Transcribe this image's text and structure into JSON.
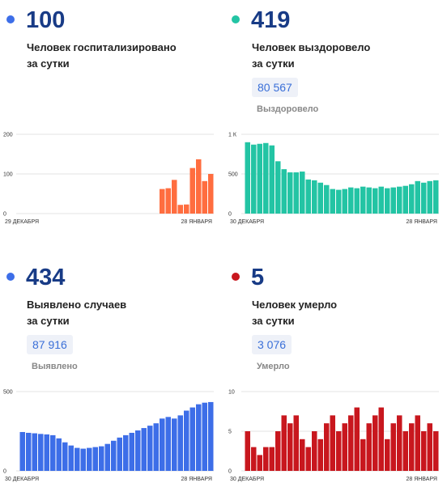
{
  "panels": {
    "hosp": {
      "value": "100",
      "line1": "Человек госпитализировано",
      "line2": "за сутки",
      "dot_color": "#3d6ee8"
    },
    "rec": {
      "value": "419",
      "line1": "Человек выздоровело",
      "line2": "за сутки",
      "total": "80 567",
      "total_label": "Выздоровело",
      "dot_color": "#23c4a4"
    },
    "case": {
      "value": "434",
      "line1": "Выявлено случаев",
      "line2": "за сутки",
      "total": "87 916",
      "total_label": "Выявлено",
      "dot_color": "#3d6ee8"
    },
    "dead": {
      "value": "5",
      "line1": "Человек умерло",
      "line2": "за сутки",
      "total": "3 076",
      "total_label": "Умерло",
      "dot_color": "#c8171e"
    }
  },
  "chart_data": [
    {
      "id": "hosp",
      "type": "bar",
      "color": "#ff6d3f",
      "x_start_label": "29 ДЕКАБРЯ",
      "x_end_label": "28 ЯНВАРЯ",
      "yticks": [
        0,
        100,
        200
      ],
      "ytick_labels": [
        "0",
        "100",
        "200"
      ],
      "ylim": [
        0,
        200
      ],
      "values": [
        null,
        null,
        null,
        null,
        null,
        null,
        null,
        null,
        null,
        null,
        null,
        null,
        null,
        null,
        null,
        null,
        null,
        null,
        null,
        null,
        null,
        null,
        null,
        62,
        64,
        85,
        22,
        23,
        115,
        137,
        82,
        100
      ]
    },
    {
      "id": "rec",
      "type": "bar",
      "color": "#23c4a4",
      "x_start_label": "30 ДЕКАБРЯ",
      "x_end_label": "28 ЯНВАРЯ",
      "yticks": [
        0,
        500,
        1000
      ],
      "ytick_labels": [
        "0",
        "500",
        "1 К"
      ],
      "ylim": [
        0,
        1000
      ],
      "values": [
        900,
        870,
        880,
        890,
        860,
        660,
        560,
        520,
        520,
        530,
        430,
        420,
        390,
        360,
        310,
        300,
        310,
        330,
        320,
        340,
        330,
        320,
        340,
        320,
        330,
        340,
        350,
        370,
        410,
        390,
        410,
        420
      ]
    },
    {
      "id": "case",
      "type": "bar",
      "color": "#3d6ee8",
      "x_start_label": "30 ДЕКАБРЯ",
      "x_end_label": "28 ЯНВАРЯ",
      "yticks": [
        0,
        500
      ],
      "ytick_labels": [
        "0",
        "500"
      ],
      "ylim": [
        0,
        500
      ],
      "values": [
        245,
        240,
        237,
        233,
        230,
        225,
        205,
        180,
        160,
        145,
        140,
        145,
        150,
        155,
        170,
        190,
        210,
        225,
        240,
        255,
        270,
        285,
        300,
        330,
        340,
        330,
        350,
        380,
        400,
        420,
        430,
        434
      ]
    },
    {
      "id": "dead",
      "type": "bar",
      "color": "#c8171e",
      "x_start_label": "30 ДЕКАБРЯ",
      "x_end_label": "28 ЯНВАРЯ",
      "yticks": [
        0,
        5,
        10
      ],
      "ytick_labels": [
        "0",
        "5",
        "10"
      ],
      "ylim": [
        0,
        10
      ],
      "values": [
        5,
        3,
        2,
        3,
        3,
        5,
        7,
        6,
        7,
        4,
        3,
        5,
        4,
        6,
        7,
        5,
        6,
        7,
        8,
        4,
        6,
        7,
        8,
        4,
        6,
        7,
        5,
        6,
        7,
        5,
        6,
        5
      ]
    }
  ]
}
